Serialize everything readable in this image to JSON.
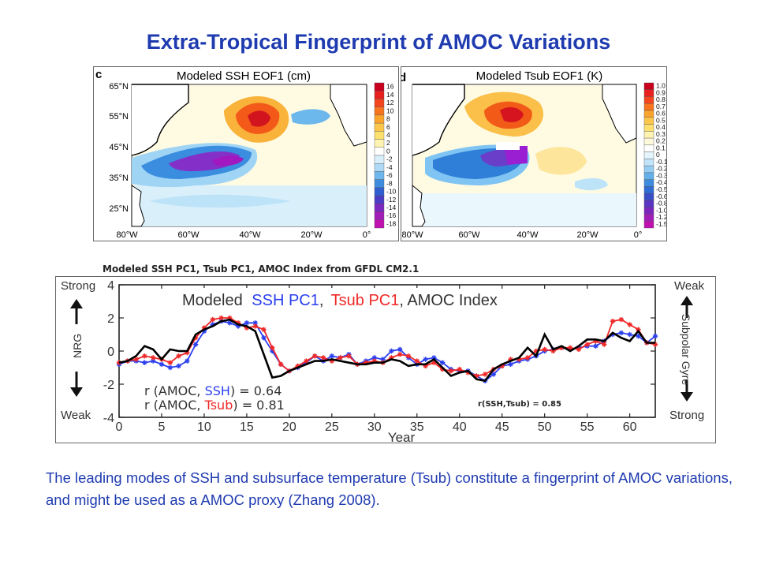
{
  "title": "Extra-Tropical Fingerprint of AMOC Variations",
  "maps": [
    {
      "panel_letter": "c",
      "title": "Modeled SSH EOF1 (cm)",
      "lat_labels": [
        "65°N",
        "55°N",
        "45°N",
        "35°N",
        "25°N"
      ],
      "lon_labels": [
        "80°W",
        "60°W",
        "40°W",
        "20°W",
        "0°"
      ],
      "colorbar": [
        "16",
        "14",
        "12",
        "10",
        "8",
        "6",
        "4",
        "2",
        "0",
        "-2",
        "-4",
        "-6",
        "-8",
        "-10",
        "-12",
        "-14",
        "-16",
        "-18"
      ]
    },
    {
      "panel_letter": "d",
      "title": "Modeled Tsub EOF1 (K)",
      "lat_labels": [],
      "lon_labels": [
        "80°W",
        "60°W",
        "40°W",
        "20°W",
        "0°"
      ],
      "colorbar": [
        "1.0",
        "0.9",
        "0.8",
        "0.7",
        "0.6",
        "0.5",
        "0.4",
        "0.3",
        "0.2",
        "0.1",
        "0",
        "-0.1",
        "-0.2",
        "-0.3",
        "-0.4",
        "-0.5",
        "-0.6",
        "-0.8",
        "-1.0",
        "-1.2",
        "-1.5"
      ]
    }
  ],
  "caption": "Modeled SSH PC1, Tsub PC1, AMOC Index from GFDL CM2.1",
  "chart_data": {
    "type": "line",
    "legend": {
      "prefix": "Modeled",
      "ssh": "SSH PC1",
      "comma": ",",
      "tsub": "Tsub PC1",
      "amoc": ", AMOC Index"
    },
    "xlabel": "Year",
    "ylabel": "NRG",
    "left_top": "Strong",
    "left_bottom": "Weak",
    "right_top": "Weak",
    "right_bottom": "Strong",
    "right_label": "Subpolar Gyre",
    "xlim": [
      0,
      63
    ],
    "ylim": [
      -4,
      4
    ],
    "xticks": [
      "0",
      "5",
      "10",
      "15",
      "20",
      "25",
      "30",
      "35",
      "40",
      "45",
      "50",
      "55",
      "60"
    ],
    "yticks": [
      "4",
      "2",
      "0",
      "-2",
      "-4"
    ],
    "corr_ssh": [
      "r (AMOC, ",
      "SSH",
      ") = 0.64"
    ],
    "corr_tsub": [
      "r (AMOC, ",
      "Tsub",
      ") = 0.81"
    ],
    "corr_ssh_tsub": "r(SSH,Tsub)  = 0.85",
    "colors": {
      "ssh": "#2b3ff0",
      "tsub": "#f02828",
      "amoc": "#000000"
    },
    "series": [
      {
        "name": "AMOC Index",
        "key": "amoc",
        "values": [
          -0.7,
          -0.6,
          -0.3,
          0.3,
          0.1,
          -0.5,
          0.1,
          0.0,
          0.0,
          1.0,
          1.3,
          1.5,
          1.8,
          1.9,
          1.6,
          1.5,
          1.2,
          -0.2,
          -1.6,
          -1.5,
          -1.2,
          -1.0,
          -0.8,
          -0.6,
          -0.6,
          -0.5,
          -0.6,
          -0.7,
          -0.8,
          -0.8,
          -0.7,
          -0.7,
          -0.5,
          -0.6,
          -0.9,
          -0.8,
          -0.8,
          -0.5,
          -1.0,
          -1.5,
          -1.3,
          -1.2,
          -1.7,
          -1.8,
          -1.1,
          -0.8,
          -0.6,
          -0.4,
          0.2,
          -0.3,
          1.0,
          0.1,
          0.3,
          0.0,
          0.3,
          0.7,
          0.7,
          0.6,
          1.1,
          0.8,
          0.6,
          1.2,
          0.5,
          0.5
        ]
      },
      {
        "name": "SSH PC1",
        "key": "ssh",
        "values": [
          -0.8,
          -0.6,
          -0.6,
          -0.7,
          -0.6,
          -0.8,
          -1.0,
          -0.9,
          -0.6,
          0.4,
          1.2,
          1.6,
          1.8,
          1.7,
          1.5,
          1.7,
          1.7,
          0.8,
          0.0,
          -0.8,
          -1.2,
          -1.0,
          -0.7,
          -0.3,
          -0.6,
          -0.3,
          -0.4,
          -0.2,
          -0.8,
          -0.6,
          -0.4,
          -0.5,
          0.0,
          0.1,
          -0.4,
          -0.8,
          -0.5,
          -0.4,
          -0.7,
          -1.1,
          -1.2,
          -1.2,
          -1.5,
          -1.8,
          -1.4,
          -0.9,
          -0.8,
          -0.6,
          -0.5,
          -0.3,
          0.0,
          0.1,
          0.2,
          0.1,
          0.2,
          0.3,
          0.3,
          0.6,
          1.0,
          1.1,
          1.0,
          0.9,
          0.5,
          0.9
        ]
      },
      {
        "name": "Tsub PC1",
        "key": "tsub",
        "values": [
          -0.7,
          -0.6,
          -0.5,
          -0.3,
          -0.4,
          -0.5,
          -0.7,
          -0.3,
          -0.1,
          0.8,
          1.4,
          1.9,
          2.0,
          2.0,
          1.7,
          1.4,
          1.5,
          1.3,
          0.2,
          -0.8,
          -1.2,
          -0.9,
          -0.6,
          -0.3,
          -0.4,
          -0.6,
          -0.4,
          -0.3,
          -0.8,
          -0.7,
          -0.6,
          -0.7,
          -0.4,
          -0.2,
          -0.3,
          -0.6,
          -0.9,
          -0.7,
          -1.1,
          -1.2,
          -1.1,
          -1.3,
          -1.5,
          -1.4,
          -1.1,
          -0.9,
          -0.5,
          -0.5,
          -0.4,
          0.0,
          0.1,
          0.0,
          0.2,
          0.2,
          0.1,
          0.4,
          0.6,
          0.4,
          1.8,
          1.9,
          1.6,
          1.3,
          0.5,
          0.4
        ]
      }
    ]
  },
  "body_text": "The leading modes of SSH and subsurface temperature (Tsub) constitute a fingerprint of AMOC variations, and might be used as a AMOC proxy (Zhang 2008)."
}
